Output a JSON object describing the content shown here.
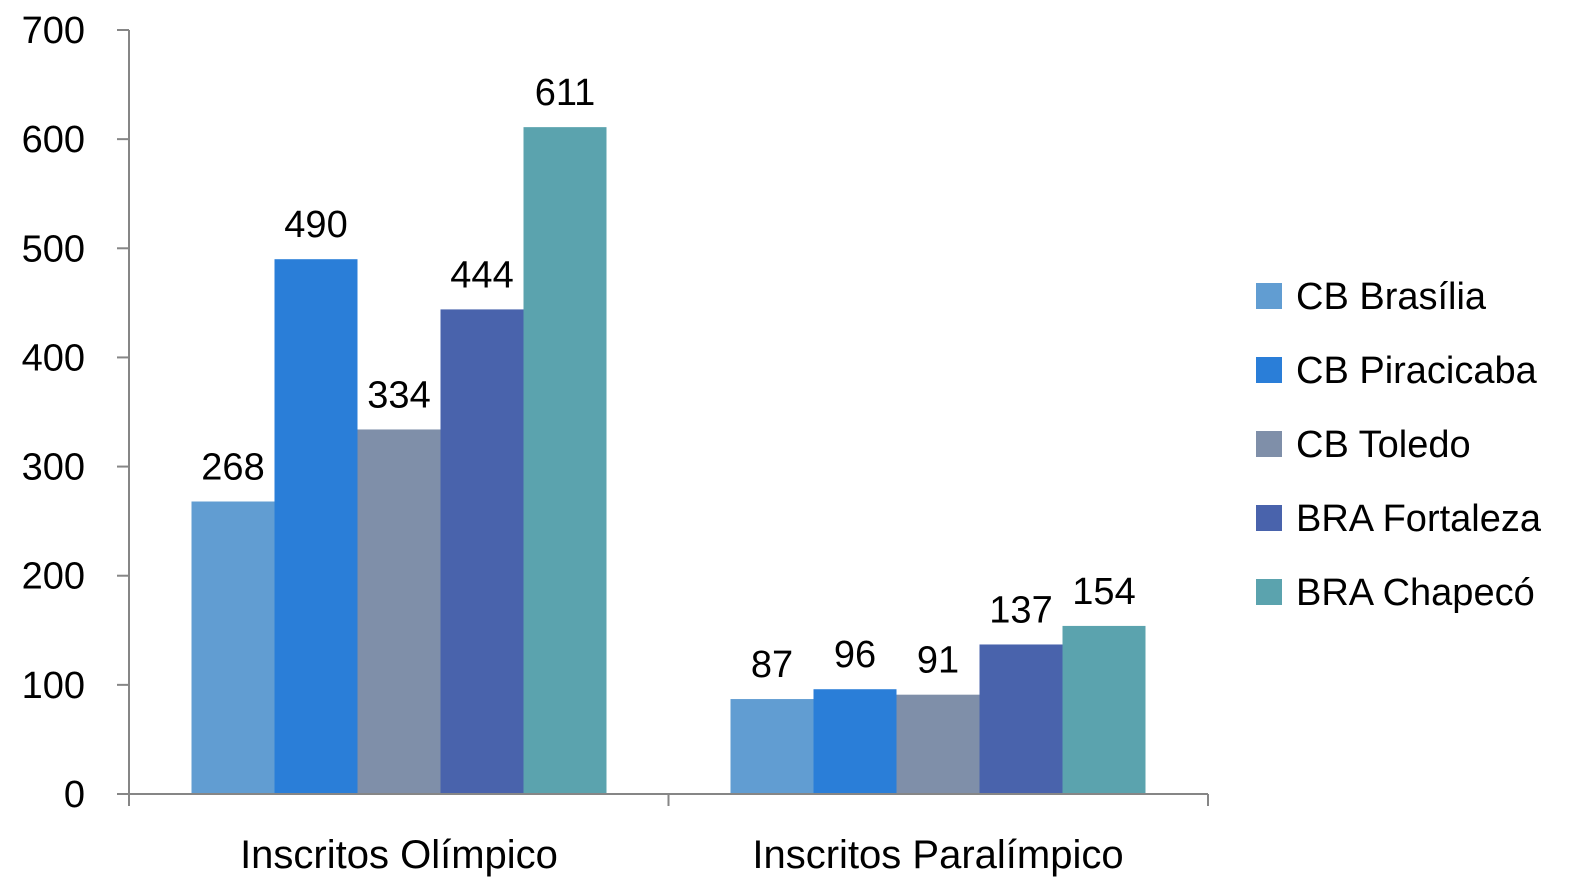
{
  "chart_data": {
    "type": "bar",
    "categories": [
      "Inscritos Olímpico",
      "Inscritos Paralímpico"
    ],
    "series": [
      {
        "name": "CB Brasília",
        "values": [
          268,
          87
        ],
        "color": "#619dd2"
      },
      {
        "name": "CB Piracicaba",
        "values": [
          490,
          96
        ],
        "color": "#2a7ed8"
      },
      {
        "name": "CB Toledo",
        "values": [
          334,
          91
        ],
        "color": "#7f8fa9"
      },
      {
        "name": "BRA Fortaleza",
        "values": [
          444,
          137
        ],
        "color": "#4963ac"
      },
      {
        "name": "BRA Chapecó",
        "values": [
          611,
          154
        ],
        "color": "#5ba3ae"
      }
    ],
    "yticks": [
      0,
      100,
      200,
      300,
      400,
      500,
      600,
      700
    ],
    "ylim": [
      0,
      700
    ],
    "data_labels": true,
    "grid": false,
    "legend_position": "right",
    "title": "",
    "xlabel": "",
    "ylabel": ""
  }
}
